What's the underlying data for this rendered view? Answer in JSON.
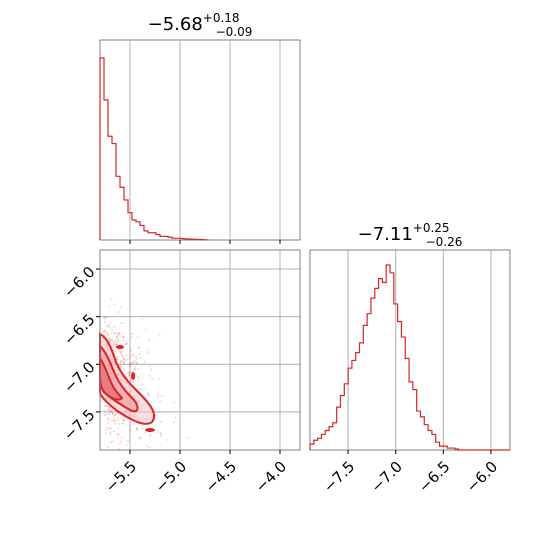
{
  "chart_data": [
    {
      "type": "histogram",
      "panel": "top-left",
      "title": {
        "median": "−5.68",
        "upper": "+0.18",
        "lower": "−0.09"
      },
      "xlim": [
        -5.8,
        -3.8
      ],
      "grid": true,
      "color": "#d62728",
      "bins_x": [
        -5.8,
        -5.76,
        -5.72,
        -5.68,
        -5.64,
        -5.6,
        -5.56,
        -5.52,
        -5.48,
        -5.44,
        -5.4,
        -5.36,
        -5.32,
        -5.28,
        -5.24,
        -5.2,
        -5.16,
        -5.12,
        -5.08,
        -5.04,
        -5.0,
        -4.96,
        -4.92,
        -4.88,
        -4.84,
        -4.8,
        -4.76,
        -4.72
      ],
      "counts": [
        100,
        77,
        57,
        53,
        35,
        29,
        22,
        15,
        11,
        10,
        8,
        5,
        4,
        4,
        3,
        2,
        2,
        1.5,
        1,
        1,
        0.8,
        0.6,
        0.5,
        0.4,
        0.3,
        0.2,
        0.1
      ]
    },
    {
      "type": "scatter-contour",
      "panel": "bottom-left",
      "xlim": [
        -5.8,
        -3.8
      ],
      "ylim": [
        -7.9,
        -5.8
      ],
      "xticks": [
        "−5.5",
        "−5.0",
        "−4.5",
        "−4.0"
      ],
      "yticks": [
        "−6.0",
        "−6.5",
        "−7.0",
        "−7.5"
      ],
      "grid": true,
      "color": "#d62728"
    },
    {
      "type": "histogram",
      "panel": "bottom-right",
      "title": {
        "median": "−7.11",
        "upper": "+0.25",
        "lower": "−0.26"
      },
      "xlim": [
        -7.9,
        -5.8
      ],
      "xticks": [
        "−7.5",
        "−7.0",
        "−6.5",
        "−6.0"
      ],
      "grid": true,
      "color": "#d62728",
      "bins_x": [
        -7.9,
        -7.86,
        -7.82,
        -7.78,
        -7.74,
        -7.7,
        -7.66,
        -7.62,
        -7.58,
        -7.54,
        -7.5,
        -7.46,
        -7.42,
        -7.38,
        -7.34,
        -7.3,
        -7.26,
        -7.22,
        -7.18,
        -7.14,
        -7.1,
        -7.06,
        -7.02,
        -6.98,
        -6.94,
        -6.9,
        -6.86,
        -6.82,
        -6.78,
        -6.74,
        -6.7,
        -6.66,
        -6.62,
        -6.58,
        -6.54,
        -6.5,
        -6.46,
        -6.42,
        -6.38,
        -6.34
      ],
      "counts": [
        3,
        5,
        6,
        8,
        10,
        12,
        14,
        22,
        28,
        34,
        42,
        46,
        50,
        55,
        64,
        70,
        78,
        83,
        88,
        86,
        95,
        91,
        75,
        66,
        58,
        47,
        35,
        31,
        20,
        17,
        13,
        10,
        8,
        4,
        2,
        2,
        1,
        1,
        0.5,
        0
      ]
    }
  ]
}
